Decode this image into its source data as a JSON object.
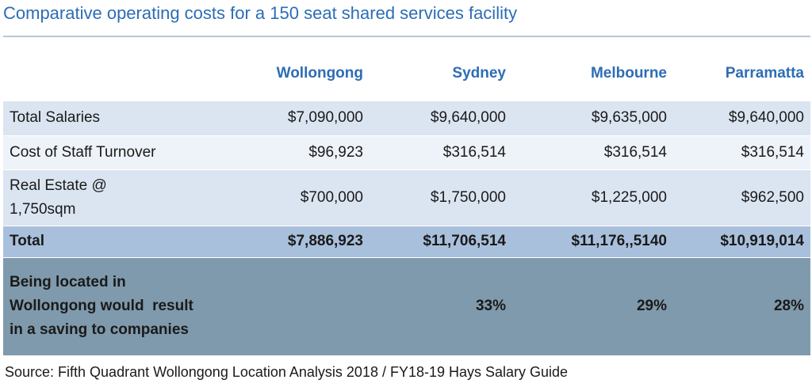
{
  "title": "Comparative operating costs for a 150 seat shared services facility",
  "columns": [
    "Wollongong",
    "Sydney",
    "Melbourne",
    "Parramatta"
  ],
  "rows": {
    "salaries": {
      "label": "Total Salaries",
      "values": [
        "$7,090,000",
        "$9,640,000",
        "$9,635,000",
        "$9,640,000"
      ]
    },
    "turnover": {
      "label": "Cost of Staff Turnover",
      "values": [
        "$96,923",
        "$316,514",
        "$316,514",
        "$316,514"
      ]
    },
    "real_estate": {
      "label_line1": "Real Estate @",
      "label_line2": "1,750sqm",
      "values": [
        "$700,000",
        "$1,750,000",
        "$1,225,000",
        "$962,500"
      ]
    },
    "total": {
      "label": "Total",
      "values": [
        "$7,886,923",
        "$11,706,514",
        "$11,176,,5140",
        "$10,919,014"
      ]
    },
    "saving": {
      "label_line1": "Being located in",
      "label_line2": "Wollongong would  result",
      "label_line3": "in a saving to companies",
      "values": [
        "",
        "33%",
        "29%",
        "28%"
      ]
    }
  },
  "source": "Source: Fifth Quadrant Wollongong Location Analysis 2018 / FY18-19 Hays Salary Guide",
  "colors": {
    "title": "#2d6db5",
    "row_light": "#dbe5f1",
    "row_lighter": "#eef3f9",
    "row_total": "#a9c0dc",
    "row_saving": "#7f9aac"
  }
}
